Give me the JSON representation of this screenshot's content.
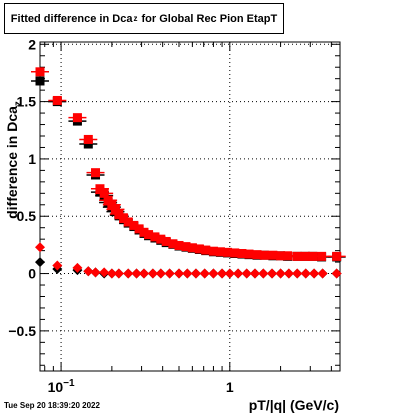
{
  "title": {
    "prefix": "Fitted difference in Dca",
    "subscript": "z",
    "suffix": "for Global Rec Pion EtapT"
  },
  "timestamp": "Tue Sep 20 18:39:20 2022",
  "chart_data": {
    "type": "scatter",
    "xlabel": "pT/|q| (GeV/c)",
    "ylabel_prefix": "difference in Dca",
    "ylabel_subscript": "z",
    "x_scale": "log",
    "xlim": [
      0.075,
      4.5
    ],
    "ylim": [
      -0.85,
      2.02
    ],
    "grid": true,
    "grid_style": "dotted",
    "y_ticks": [
      {
        "value": -0.5,
        "label": "−0.5"
      },
      {
        "value": 0,
        "label": "0"
      },
      {
        "value": 0.5,
        "label": "0.5"
      },
      {
        "value": 1,
        "label": "1"
      },
      {
        "value": 1.5,
        "label": "1.5"
      },
      {
        "value": 2,
        "label": "2"
      }
    ],
    "x_ticks": [
      {
        "value": 0.1,
        "label": "10",
        "exponent": "−1"
      },
      {
        "value": 1,
        "label": "1"
      }
    ],
    "colors": {
      "black": "#000000",
      "red": "#ff0000"
    },
    "series": [
      {
        "color": "#000000",
        "marker": "square",
        "x": [
          0.075,
          0.095,
          0.125,
          0.145,
          0.16,
          0.17,
          0.18,
          0.19,
          0.2,
          0.21,
          0.22,
          0.235,
          0.25,
          0.27,
          0.29,
          0.31,
          0.33,
          0.36,
          0.39,
          0.42,
          0.46,
          0.5,
          0.55,
          0.6,
          0.66,
          0.72,
          0.8,
          0.88,
          0.97,
          1.07,
          1.18,
          1.3,
          1.45,
          1.6,
          1.8,
          2.0,
          2.2,
          2.5,
          2.8,
          3.1,
          3.5,
          4.3
        ],
        "y": [
          1.68,
          1.5,
          1.33,
          1.13,
          0.86,
          0.71,
          0.68,
          0.62,
          0.58,
          0.54,
          0.51,
          0.47,
          0.44,
          0.41,
          0.38,
          0.35,
          0.33,
          0.31,
          0.29,
          0.27,
          0.255,
          0.24,
          0.23,
          0.22,
          0.21,
          0.2,
          0.19,
          0.185,
          0.18,
          0.175,
          0.17,
          0.165,
          0.16,
          0.16,
          0.155,
          0.155,
          0.15,
          0.15,
          0.15,
          0.15,
          0.145,
          0.145
        ]
      },
      {
        "color": "#ff0000",
        "marker": "square",
        "x": [
          0.075,
          0.095,
          0.125,
          0.145,
          0.16,
          0.17,
          0.18,
          0.19,
          0.2,
          0.21,
          0.22,
          0.235,
          0.25,
          0.27,
          0.29,
          0.31,
          0.33,
          0.36,
          0.39,
          0.42,
          0.46,
          0.5,
          0.55,
          0.6,
          0.66,
          0.72,
          0.8,
          0.88,
          0.97,
          1.07,
          1.18,
          1.3,
          1.45,
          1.6,
          1.8,
          2.0,
          2.2,
          2.5,
          2.8,
          3.1,
          3.5,
          4.3
        ],
        "y": [
          1.76,
          1.51,
          1.36,
          1.17,
          0.88,
          0.74,
          0.7,
          0.64,
          0.6,
          0.56,
          0.52,
          0.48,
          0.45,
          0.42,
          0.39,
          0.36,
          0.34,
          0.32,
          0.3,
          0.28,
          0.26,
          0.245,
          0.235,
          0.225,
          0.215,
          0.205,
          0.195,
          0.19,
          0.185,
          0.18,
          0.175,
          0.17,
          0.165,
          0.16,
          0.16,
          0.155,
          0.155,
          0.15,
          0.15,
          0.15,
          0.15,
          0.15
        ]
      },
      {
        "color": "#000000",
        "marker": "diamond",
        "x": [
          0.075,
          0.095,
          0.125,
          0.145,
          0.16,
          0.18,
          0.2,
          0.22,
          0.25,
          0.28,
          0.31,
          0.35,
          0.39,
          0.44,
          0.5,
          0.56,
          0.63,
          0.71,
          0.8,
          0.9,
          1.0,
          1.12,
          1.26,
          1.41,
          1.58,
          1.78,
          2.0,
          2.24,
          2.51,
          2.82,
          3.16,
          3.55,
          4.3
        ],
        "y": [
          0.1,
          0.04,
          0.03,
          0.02,
          0.01,
          0.0,
          0.0,
          0.0,
          0.0,
          0.0,
          0.0,
          0.0,
          0.0,
          0.0,
          0.0,
          0.0,
          0.0,
          0.0,
          0.0,
          0.0,
          0.0,
          0.0,
          0.0,
          0.0,
          0.0,
          0.0,
          0.0,
          0.0,
          0.0,
          0.0,
          0.0,
          0.0,
          0.0
        ]
      },
      {
        "color": "#ff0000",
        "marker": "diamond",
        "x": [
          0.075,
          0.095,
          0.125,
          0.145,
          0.16,
          0.18,
          0.2,
          0.22,
          0.25,
          0.28,
          0.31,
          0.35,
          0.39,
          0.44,
          0.5,
          0.56,
          0.63,
          0.71,
          0.8,
          0.9,
          1.0,
          1.12,
          1.26,
          1.41,
          1.58,
          1.78,
          2.0,
          2.24,
          2.51,
          2.82,
          3.16,
          3.55,
          4.3
        ],
        "y": [
          0.23,
          0.07,
          0.05,
          0.02,
          0.01,
          0.01,
          0.0,
          0.0,
          0.0,
          0.0,
          0.0,
          0.0,
          0.0,
          0.0,
          0.0,
          0.0,
          0.0,
          0.0,
          0.0,
          0.0,
          0.0,
          0.0,
          0.0,
          0.0,
          0.0,
          0.0,
          0.0,
          0.0,
          0.0,
          0.0,
          0.0,
          0.0,
          0.0
        ]
      }
    ]
  }
}
